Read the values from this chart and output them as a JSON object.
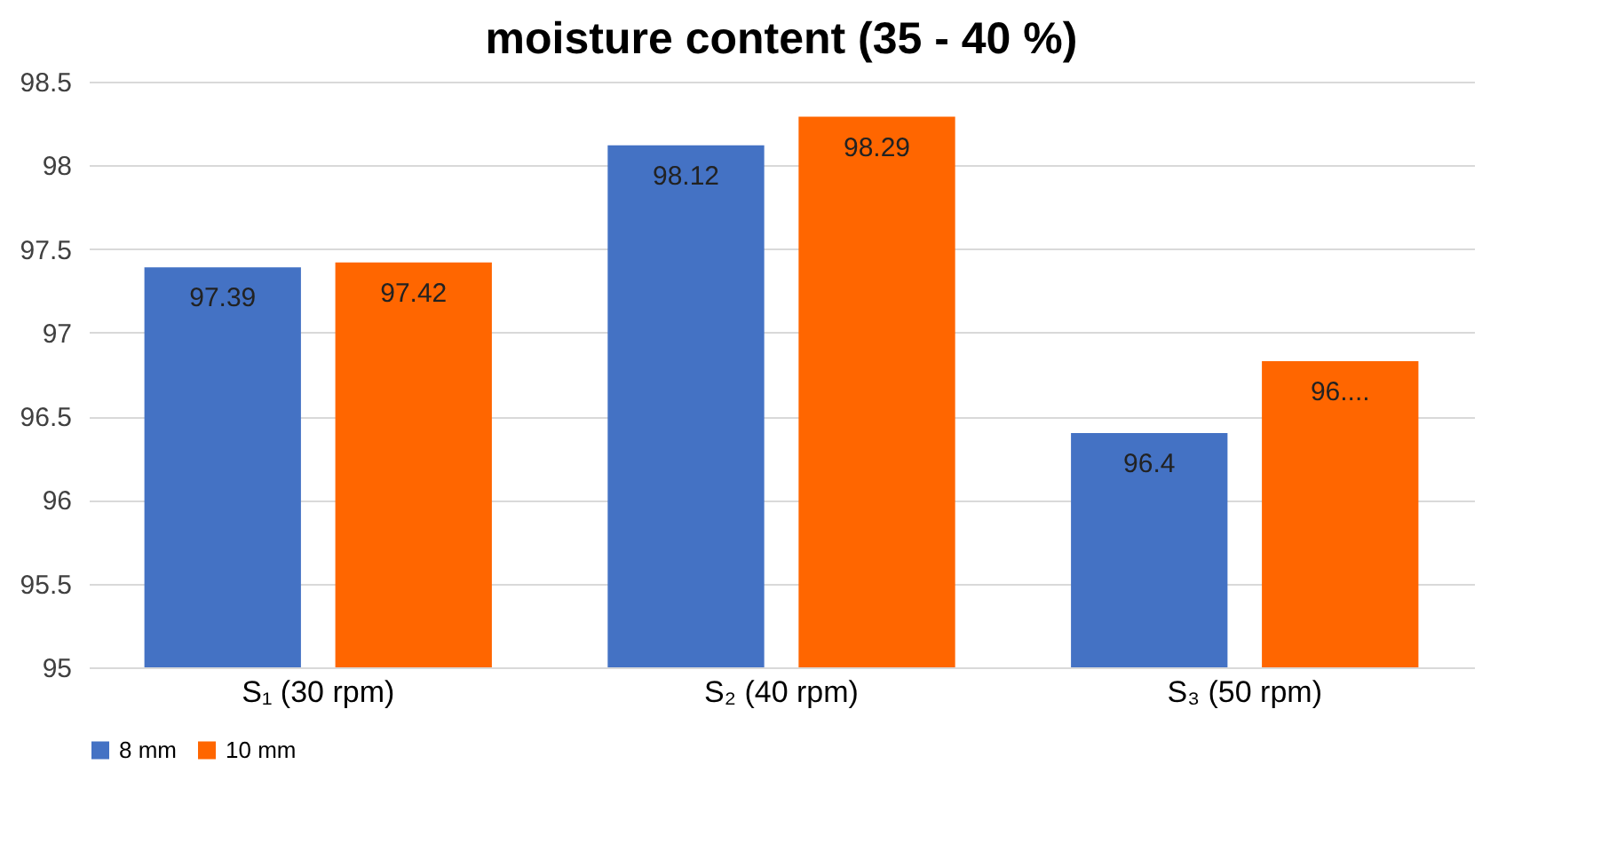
{
  "chart_data": {
    "type": "bar",
    "title": "moisture content (35 - 40 %)",
    "categories": [
      "S₁ (30 rpm)",
      "S₂ (40 rpm)",
      "S₃ (50 rpm)"
    ],
    "series": [
      {
        "name": "8 mm",
        "color": "#4472c4",
        "values": [
          97.39,
          98.12,
          96.4
        ],
        "value_labels": [
          "97.39",
          "98.12",
          "96.4"
        ]
      },
      {
        "name": "10 mm",
        "color": "#ff6600",
        "values": [
          97.42,
          98.29,
          96.83
        ],
        "value_labels": [
          "97.42",
          "98.29",
          "96...."
        ]
      }
    ],
    "ylim": [
      95,
      98.5
    ],
    "yticks": [
      95,
      95.5,
      96,
      96.5,
      97,
      97.5,
      98,
      98.5
    ],
    "grid": "y",
    "legend": "bottom"
  }
}
